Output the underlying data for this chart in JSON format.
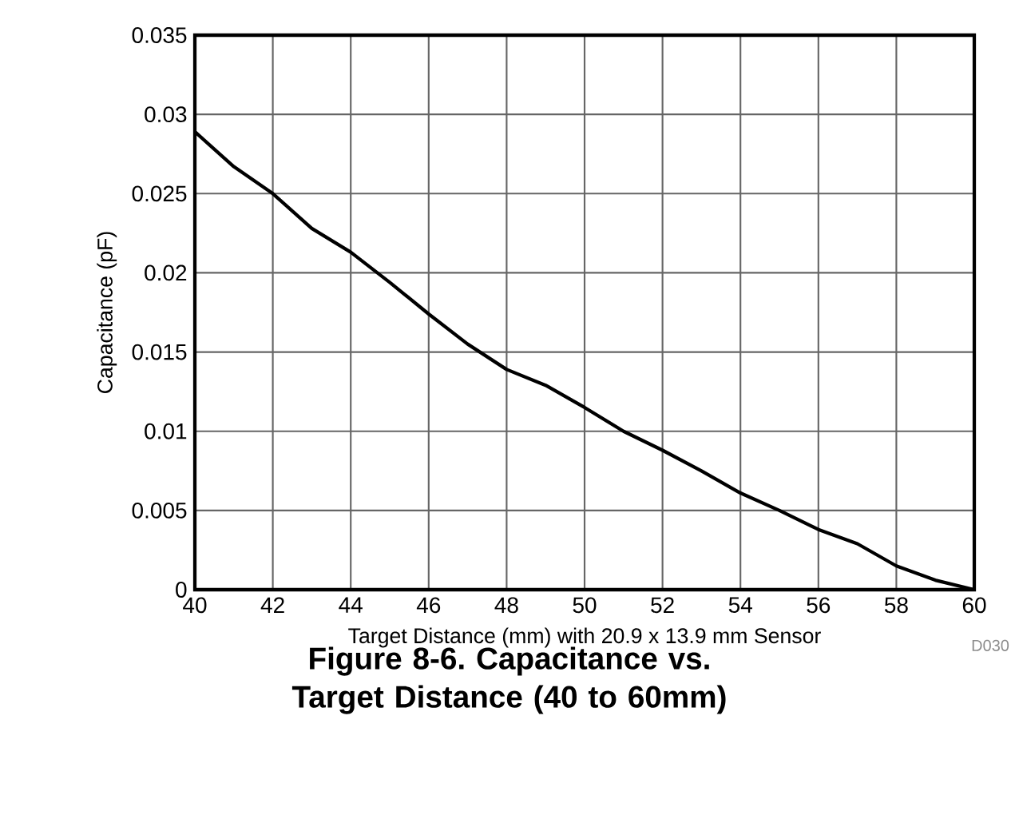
{
  "chart_data": {
    "type": "line",
    "title": "Figure 8-6. Capacitance vs. Target Distance (40 to 60mm)",
    "xlabel": "Target Distance (mm) with 20.9 x 13.9 mm Sensor",
    "ylabel": "Capacitance (pF)",
    "x": [
      40,
      41,
      42,
      43,
      44,
      45,
      46,
      47,
      48,
      49,
      50,
      51,
      52,
      53,
      54,
      55,
      56,
      57,
      58,
      59,
      60
    ],
    "series": [
      {
        "color": "#000000",
        "values": [
          0.0289,
          0.0267,
          0.025,
          0.0228,
          0.0213,
          0.0194,
          0.0174,
          0.0155,
          0.0139,
          0.0129,
          0.0115,
          0.01,
          0.0088,
          0.0075,
          0.0061,
          0.005,
          0.0038,
          0.0029,
          0.0015,
          0.0006,
          0.0
        ]
      }
    ],
    "xlim": [
      40,
      60
    ],
    "xticks": [
      40,
      42,
      44,
      46,
      48,
      50,
      52,
      54,
      56,
      58,
      60
    ],
    "ylim": [
      0,
      0.035
    ],
    "yticks": [
      0,
      0.005,
      0.01,
      0.015,
      0.02,
      0.025,
      0.03,
      0.035
    ],
    "grid": true,
    "marker": "none",
    "line_style": "solid",
    "annotations": [
      "D030"
    ]
  }
}
